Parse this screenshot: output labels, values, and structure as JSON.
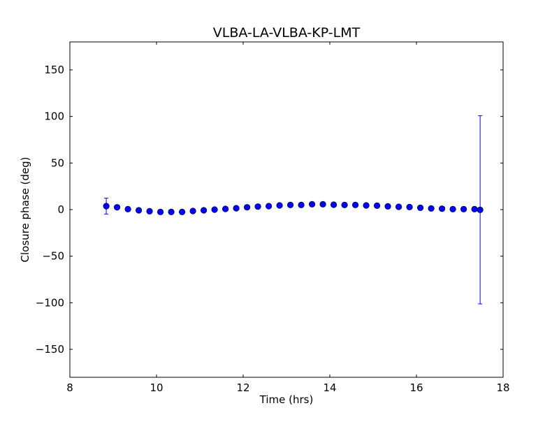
{
  "chart_data": {
    "type": "scatter",
    "title": "VLBA-LA-VLBA-KP-LMT",
    "xlabel": "Time (hrs)",
    "ylabel": "Closure phase (deg)",
    "xlim": [
      8,
      18
    ],
    "ylim": [
      -180,
      180
    ],
    "xticks": [
      8,
      10,
      12,
      14,
      16,
      18
    ],
    "yticks": [
      -150,
      -100,
      -50,
      0,
      50,
      100,
      150
    ],
    "ytick_labels": [
      "−150",
      "−100",
      "−50",
      "0",
      "50",
      "100",
      "150"
    ],
    "grid": false,
    "marker_color": "#0000ff",
    "errorbar_color": "#0000ff",
    "series": [
      {
        "name": "closure phase",
        "x": [
          8.84,
          9.09,
          9.34,
          9.59,
          9.84,
          10.09,
          10.34,
          10.59,
          10.84,
          11.09,
          11.34,
          11.59,
          11.84,
          12.09,
          12.34,
          12.59,
          12.84,
          13.09,
          13.34,
          13.59,
          13.84,
          14.09,
          14.34,
          14.59,
          14.84,
          15.09,
          15.34,
          15.59,
          15.84,
          16.09,
          16.34,
          16.59,
          16.84,
          17.09,
          17.34,
          17.47
        ],
        "y": [
          3.75,
          2.5,
          0.5,
          -0.75,
          -1.75,
          -2.5,
          -2.5,
          -2.5,
          -1.5,
          -0.75,
          0,
          0.75,
          1.5,
          2.5,
          3.25,
          3.75,
          4.5,
          5.0,
          5.0,
          5.75,
          5.75,
          5.25,
          5.0,
          5.0,
          4.5,
          4.25,
          3.5,
          3.0,
          2.75,
          2.0,
          1.25,
          1.0,
          0.5,
          0.5,
          0.5,
          -0.25
        ],
        "yerr": [
          8.5,
          0,
          0,
          0,
          0,
          0,
          0,
          0,
          0,
          0,
          0,
          0,
          0,
          0,
          0,
          0,
          0,
          0,
          0,
          0,
          0,
          0,
          0,
          0,
          0,
          0,
          0,
          0,
          0,
          0,
          0,
          0,
          0,
          0,
          0,
          101
        ]
      }
    ]
  }
}
